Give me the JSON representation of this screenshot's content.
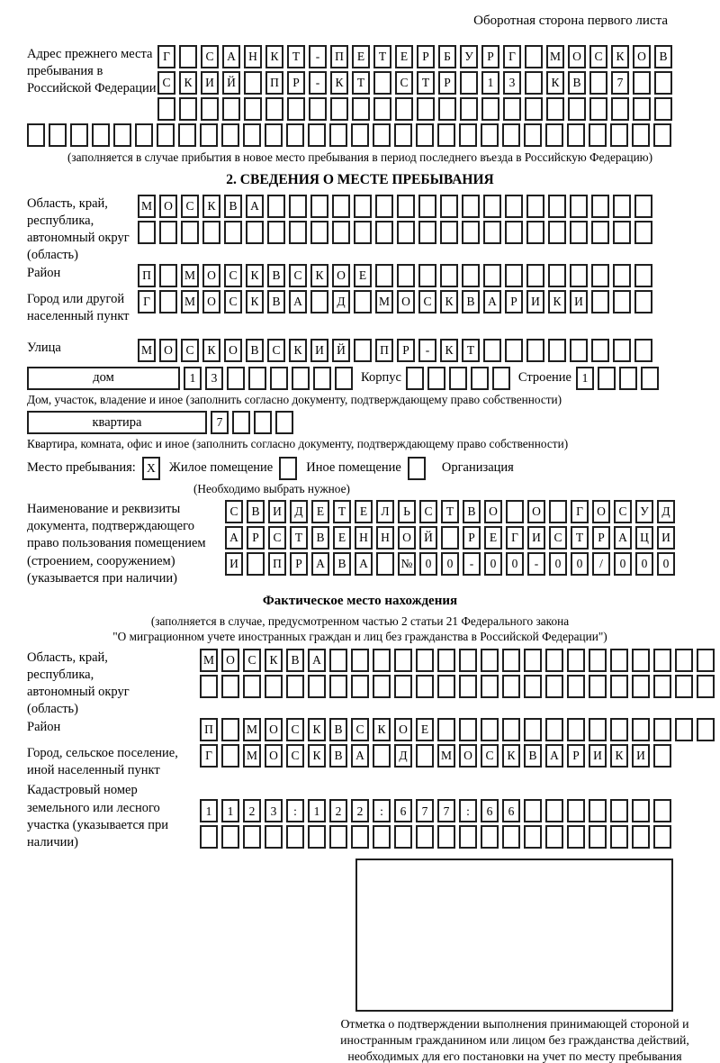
{
  "header": {
    "title": "Оборотная сторона первого листа"
  },
  "prev_address": {
    "label": "Адрес прежнего места пребывания в Российской Федерации",
    "row1": "Г САНКТ-ПЕТЕРБУРГ МОСКОВ",
    "row2": "СКИЙ ПР-КТ СТР 13 КВ 7",
    "row3": "",
    "row4": "",
    "caption": "(заполняется в случае прибытия в новое место пребывания в период последнего въезда в Российскую Федерацию)"
  },
  "section2": {
    "title": "2. СВЕДЕНИЯ О МЕСТЕ ПРЕБЫВАНИЯ",
    "region": {
      "label": "Область, край, республика, автономный округ (область)",
      "row1": "МОСКВА",
      "row2": ""
    },
    "district": {
      "label": "Район",
      "row": "П МОСКВСКОЕ"
    },
    "city": {
      "label": "Город или другой населенный пункт",
      "row": "Г МОСКВА Д МОСКВАРИКИ"
    },
    "street": {
      "label": "Улица",
      "row": "МОСКОВСКИЙ ПР-КТ"
    },
    "house": {
      "box_label": "дом",
      "number": "13",
      "korpus_label": "Корпус",
      "korpus": "",
      "stroenie_label": "Строение",
      "stroenie": "1"
    },
    "house_caption": "Дом, участок, владение и иное (заполнить согласно документу, подтверждающему право собственности)",
    "apartment": {
      "box_label": "квартира",
      "number": "7"
    },
    "apartment_caption": "Квартира, комната, офис и иное (заполнить согласно документу, подтверждающему право собственности)",
    "stay": {
      "label": "Место пребывания:",
      "options": [
        {
          "label": "Жилое помещение",
          "value": "X"
        },
        {
          "label": "Иное помещение",
          "value": ""
        },
        {
          "label": "Организация",
          "value": ""
        }
      ],
      "note": "(Необходимо выбрать нужное)"
    },
    "doc": {
      "label": "Наименование и реквизиты документа, подтверждающего право пользования помещением (строением, сооружением) (указывается при наличии)",
      "row1": "СВИДЕТЕЛЬСТВО О ГОСУД",
      "row2": "АРСТВЕННОЙ РЕГИСТРАЦИ",
      "row3": "И ПРАВА №00-00-00/000"
    }
  },
  "fact": {
    "title": "Фактическое место нахождения",
    "note1": "(заполняется в случае, предусмотренном частью 2 статьи 21 Федерального закона",
    "note2": "\"О миграционном учете иностранных граждан и лиц без гражданства в Российской Федерации\")",
    "region": {
      "label": "Область, край, республика, автономный округ (область)",
      "row1": "МОСКВА",
      "row2": ""
    },
    "district": {
      "label": "Район",
      "row": "П МОСКВСКОЕ"
    },
    "city": {
      "label": "Город, сельское поселение, иной населенный пункт",
      "row": "Г МОСКВА Д МОСКВАРИКИ"
    },
    "cadastre": {
      "label": "Кадастровый номер земельного или лесного участка (указывается при наличии)",
      "row1": "1123:122:677:66",
      "row2": ""
    }
  },
  "confirmation": {
    "caption": "Отметка о подтверждении выполнения принимающей стороной и иностранным гражданином или лицом без гражданства действий, необходимых для его постановки на учет по месту пребывания"
  }
}
